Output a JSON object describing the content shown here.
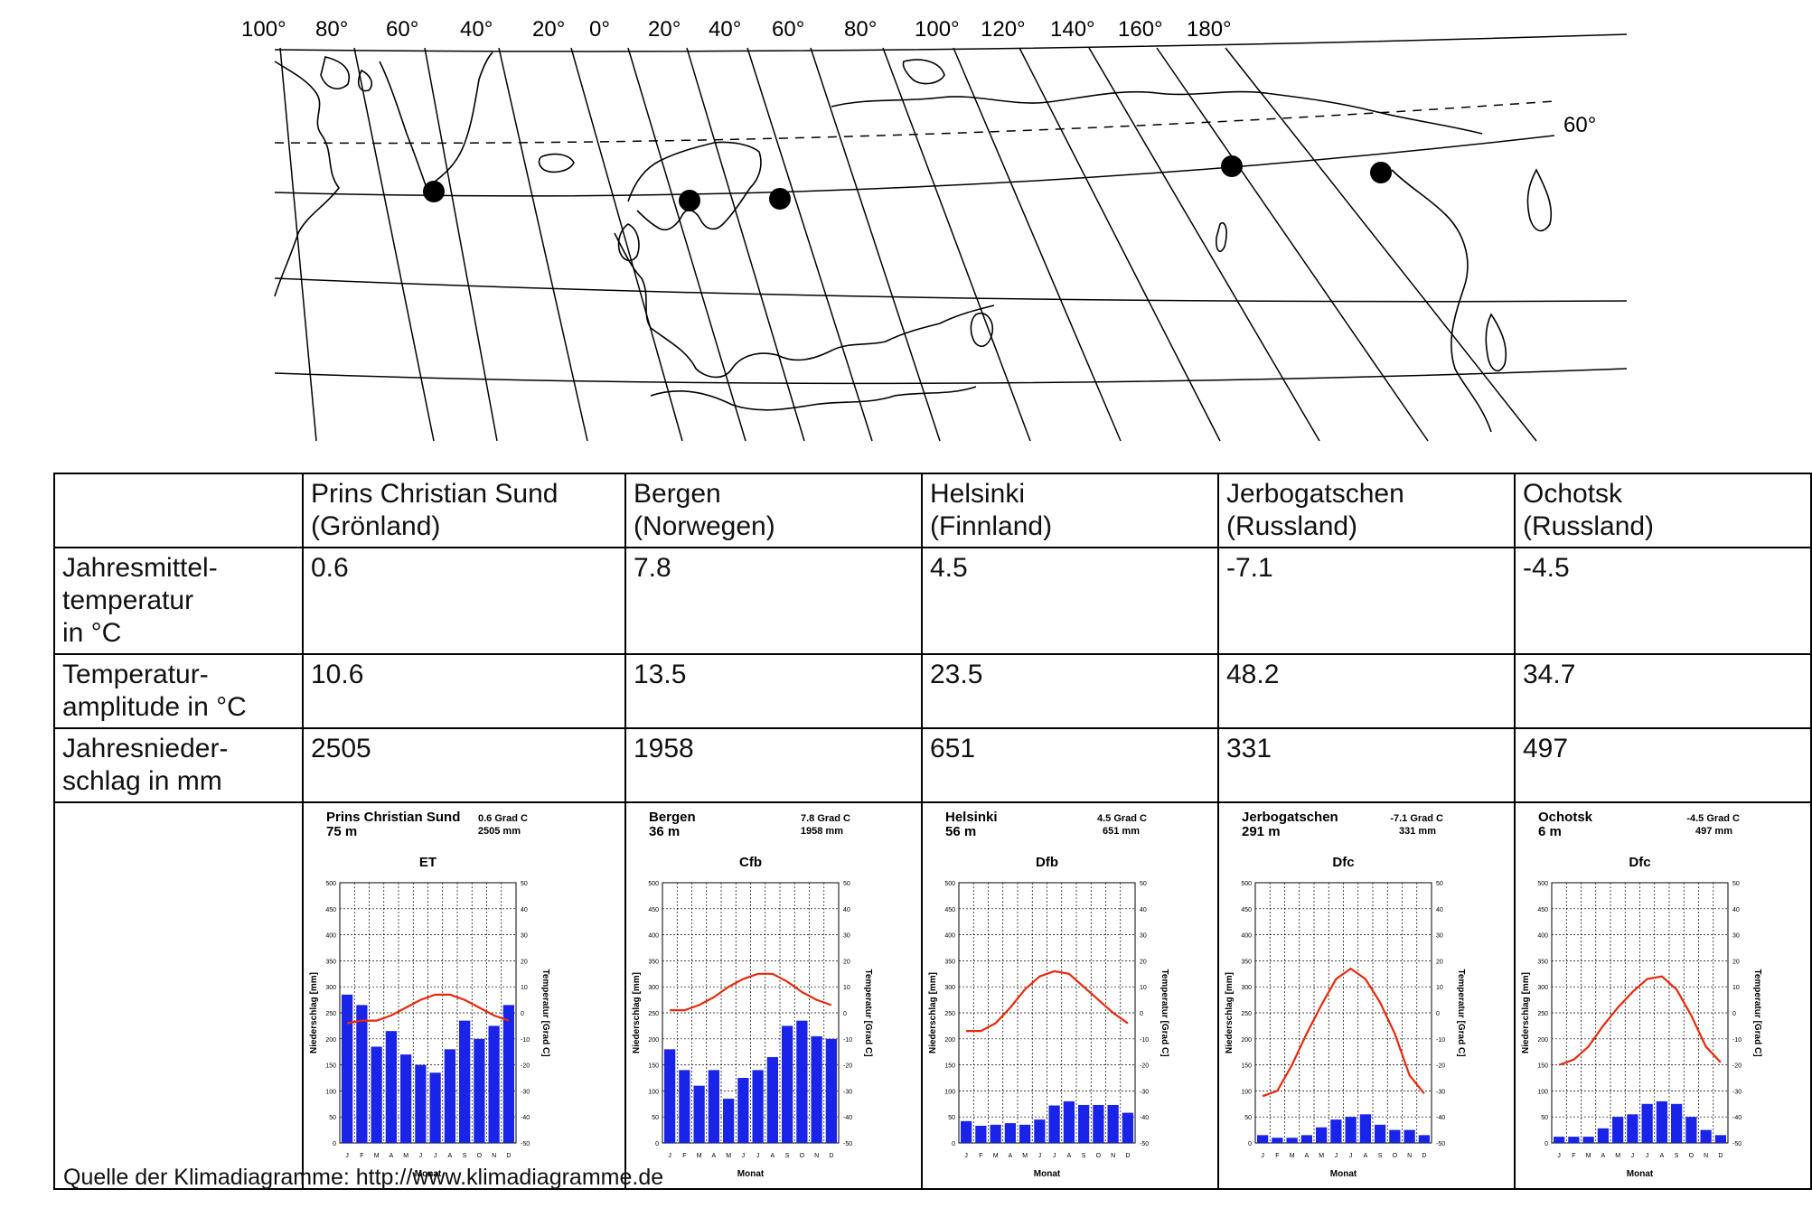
{
  "map": {
    "longitude_labels": [
      "100°",
      "80°",
      "60°",
      "40°",
      "20°",
      "0°",
      "20°",
      "40°",
      "60°",
      "80°",
      "100°",
      "120°",
      "140°",
      "160°",
      "180°"
    ],
    "latitude_label": "60°",
    "station_markers": [
      "Prins Christian Sund",
      "Bergen",
      "Helsinki",
      "Jerbogatschen",
      "Ochotsk"
    ]
  },
  "table": {
    "row_labels": [
      "Jahresmittel-\ntemperatur\nin °C",
      "Temperatur-\namplitude in °C",
      "Jahresnieder-\nschlag in mm"
    ],
    "stations": [
      {
        "header": "Prins Christian Sund\n(Grönland)",
        "mean_temp": "0.6",
        "amplitude": "10.6",
        "precip": "2505"
      },
      {
        "header": "Bergen\n(Norwegen)",
        "mean_temp": "7.8",
        "amplitude": "13.5",
        "precip": "1958"
      },
      {
        "header": "Helsinki\n(Finnland)",
        "mean_temp": "4.5",
        "amplitude": "23.5",
        "precip": "651"
      },
      {
        "header": "Jerbogatschen\n(Russland)",
        "mean_temp": "-7.1",
        "amplitude": "48.2",
        "precip": "331"
      },
      {
        "header": "Ochotsk\n(Russland)",
        "mean_temp": "-4.5",
        "amplitude": "34.7",
        "precip": "497"
      }
    ]
  },
  "chart_data": [
    {
      "type": "bar",
      "title": "Prins Christian Sund",
      "elevation": "75 m",
      "temp_label": "0.6 Grad C",
      "precip_label": "2505 mm",
      "climate_class": "ET",
      "categories": [
        "J",
        "F",
        "M",
        "A",
        "M",
        "J",
        "J",
        "A",
        "S",
        "O",
        "N",
        "D"
      ],
      "series": [
        {
          "name": "Niederschlag [mm]",
          "values": [
            285,
            265,
            185,
            215,
            170,
            150,
            135,
            180,
            235,
            200,
            225,
            265
          ]
        },
        {
          "name": "Temperatur [Grad C]",
          "values": [
            -4,
            -3,
            -3,
            -1,
            2,
            5,
            7,
            7,
            5,
            2,
            -1,
            -3
          ]
        }
      ],
      "ylabel": "Niederschlag [mm]",
      "y2label": "Temperatur [Grad C]",
      "xlabel": "Monat",
      "ylim": [
        0,
        500
      ],
      "y2lim": [
        -50,
        50
      ]
    },
    {
      "type": "bar",
      "title": "Bergen",
      "elevation": "36 m",
      "temp_label": "7.8 Grad C",
      "precip_label": "1958 mm",
      "climate_class": "Cfb",
      "categories": [
        "J",
        "F",
        "M",
        "A",
        "M",
        "J",
        "J",
        "A",
        "S",
        "O",
        "N",
        "D"
      ],
      "series": [
        {
          "name": "Niederschlag [mm]",
          "values": [
            180,
            140,
            110,
            140,
            85,
            125,
            140,
            165,
            225,
            235,
            205,
            200
          ]
        },
        {
          "name": "Temperatur [Grad C]",
          "values": [
            1,
            1,
            3,
            6,
            10,
            13,
            15,
            15,
            12,
            8,
            5,
            3
          ]
        }
      ],
      "ylabel": "Niederschlag [mm]",
      "y2label": "Temperatur [Grad C]",
      "xlabel": "Monat",
      "ylim": [
        0,
        500
      ],
      "y2lim": [
        -50,
        50
      ]
    },
    {
      "type": "bar",
      "title": "Helsinki",
      "elevation": "56 m",
      "temp_label": "4.5 Grad C",
      "precip_label": "651 mm",
      "climate_class": "Dfb",
      "categories": [
        "J",
        "F",
        "M",
        "A",
        "M",
        "J",
        "J",
        "A",
        "S",
        "O",
        "N",
        "D"
      ],
      "series": [
        {
          "name": "Niederschlag [mm]",
          "values": [
            42,
            33,
            35,
            38,
            35,
            45,
            72,
            80,
            73,
            73,
            73,
            58
          ]
        },
        {
          "name": "Temperatur [Grad C]",
          "values": [
            -7,
            -7,
            -4,
            2,
            9,
            14,
            16,
            15,
            10,
            5,
            0,
            -4
          ]
        }
      ],
      "ylabel": "Niederschlag [mm]",
      "y2label": "Temperatur [Grad C]",
      "xlabel": "Monat",
      "ylim": [
        0,
        500
      ],
      "y2lim": [
        -50,
        50
      ]
    },
    {
      "type": "bar",
      "title": "Jerbogatschen",
      "elevation": "291 m",
      "temp_label": "-7.1 Grad C",
      "precip_label": "331 mm",
      "climate_class": "Dfc",
      "categories": [
        "J",
        "F",
        "M",
        "A",
        "M",
        "J",
        "J",
        "A",
        "S",
        "O",
        "N",
        "D"
      ],
      "series": [
        {
          "name": "Niederschlag [mm]",
          "values": [
            15,
            10,
            10,
            15,
            30,
            45,
            50,
            55,
            35,
            25,
            25,
            15
          ]
        },
        {
          "name": "Temperatur [Grad C]",
          "values": [
            -32,
            -30,
            -20,
            -8,
            3,
            13,
            17,
            13,
            4,
            -8,
            -24,
            -31
          ]
        }
      ],
      "ylabel": "Niederschlag [mm]",
      "y2label": "Temperatur [Grad C]",
      "xlabel": "Monat",
      "ylim": [
        0,
        500
      ],
      "y2lim": [
        -50,
        50
      ]
    },
    {
      "type": "bar",
      "title": "Ochotsk",
      "elevation": "6 m",
      "temp_label": "-4.5 Grad C",
      "precip_label": "497 mm",
      "climate_class": "Dfc",
      "categories": [
        "J",
        "F",
        "M",
        "A",
        "M",
        "J",
        "J",
        "A",
        "S",
        "O",
        "N",
        "D"
      ],
      "series": [
        {
          "name": "Niederschlag [mm]",
          "values": [
            12,
            12,
            12,
            28,
            50,
            55,
            75,
            80,
            75,
            50,
            25,
            15
          ]
        },
        {
          "name": "Temperatur [Grad C]",
          "values": [
            -20,
            -18,
            -13,
            -5,
            2,
            8,
            13,
            14,
            9,
            -1,
            -13,
            -19
          ]
        }
      ],
      "ylabel": "Niederschlag [mm]",
      "y2label": "Temperatur [Grad C]",
      "xlabel": "Monat",
      "ylim": [
        0,
        500
      ],
      "y2lim": [
        -50,
        50
      ]
    }
  ],
  "source": "Quelle der Klimadiagramme: http://www.klimadiagramme.de"
}
